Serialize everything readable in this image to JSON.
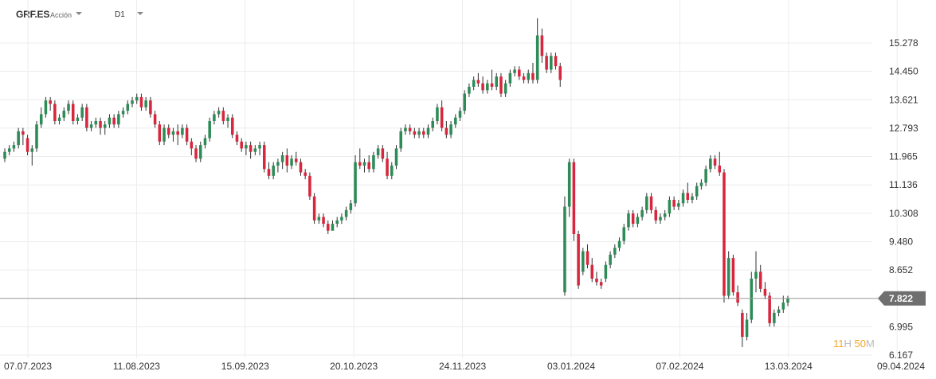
{
  "header": {
    "symbol": "GRF.ES",
    "symbol_type": "Acción",
    "timeframe": "D1"
  },
  "countdown": {
    "hours": "11",
    "hours_unit": "H",
    "minutes": "50",
    "minutes_unit": "M"
  },
  "colors": {
    "up": "#2e8b57",
    "down": "#d7263d",
    "wick": "#333333",
    "grid": "#ececec",
    "price_line": "#999999",
    "price_tag": "#6f6f6f"
  },
  "chart_data": {
    "type": "candlestick",
    "title": "",
    "xlabel": "",
    "ylabel": "",
    "ylim": [
      6.167,
      16.2
    ],
    "grid": true,
    "y_ticks": [
      "15.278",
      "14.450",
      "13.621",
      "12.793",
      "11.965",
      "11.136",
      "10.308",
      "9.480",
      "8.652",
      "6.995",
      "6.167"
    ],
    "x_ticks": [
      "07.07.2023",
      "11.08.2023",
      "15.09.2023",
      "20.10.2023",
      "24.11.2023",
      "03.01.2024",
      "07.02.2024",
      "13.03.2024",
      "09.04.2024"
    ],
    "last_price": 7.822,
    "last_price_label": "7.822",
    "candles": [
      [
        11.9,
        12.2,
        12.1,
        11.8
      ],
      [
        12.1,
        12.3,
        12.2,
        12.0
      ],
      [
        12.2,
        12.4,
        12.3,
        12.1
      ],
      [
        12.3,
        12.8,
        12.7,
        12.2
      ],
      [
        12.7,
        12.8,
        12.6,
        12.3
      ],
      [
        12.5,
        12.6,
        12.1,
        12.0
      ],
      [
        12.1,
        12.3,
        12.2,
        11.7
      ],
      [
        12.2,
        13.0,
        12.9,
        12.1
      ],
      [
        12.9,
        13.4,
        13.2,
        12.8
      ],
      [
        13.2,
        13.7,
        13.6,
        13.1
      ],
      [
        13.6,
        13.7,
        13.5,
        13.3
      ],
      [
        13.5,
        13.6,
        13.0,
        12.9
      ],
      [
        13.0,
        13.2,
        13.1,
        12.9
      ],
      [
        13.1,
        13.4,
        13.3,
        13.0
      ],
      [
        13.3,
        13.6,
        13.5,
        13.2
      ],
      [
        13.5,
        13.6,
        13.0,
        12.9
      ],
      [
        13.0,
        13.2,
        13.1,
        12.9
      ],
      [
        13.1,
        13.5,
        13.4,
        13.0
      ],
      [
        13.4,
        13.5,
        12.8,
        12.7
      ],
      [
        12.8,
        13.0,
        12.9,
        12.7
      ],
      [
        12.9,
        13.1,
        13.0,
        12.8
      ],
      [
        13.0,
        13.1,
        12.8,
        12.6
      ],
      [
        12.8,
        13.0,
        12.9,
        12.6
      ],
      [
        12.9,
        13.2,
        13.1,
        12.8
      ],
      [
        13.1,
        13.2,
        12.9,
        12.8
      ],
      [
        12.9,
        13.3,
        13.2,
        12.8
      ],
      [
        13.2,
        13.4,
        13.3,
        13.1
      ],
      [
        13.3,
        13.6,
        13.5,
        13.2
      ],
      [
        13.5,
        13.7,
        13.6,
        13.4
      ],
      [
        13.6,
        13.8,
        13.7,
        13.5
      ],
      [
        13.7,
        13.8,
        13.4,
        13.3
      ],
      [
        13.4,
        13.7,
        13.6,
        13.3
      ],
      [
        13.6,
        13.7,
        13.2,
        13.1
      ],
      [
        13.2,
        13.3,
        12.9,
        12.8
      ],
      [
        12.9,
        13.0,
        12.4,
        12.3
      ],
      [
        12.4,
        12.9,
        12.8,
        12.3
      ],
      [
        12.8,
        12.9,
        12.6,
        12.5
      ],
      [
        12.6,
        12.8,
        12.7,
        12.4
      ],
      [
        12.7,
        12.9,
        12.6,
        12.3
      ],
      [
        12.6,
        12.9,
        12.8,
        12.5
      ],
      [
        12.8,
        12.9,
        12.4,
        12.3
      ],
      [
        12.4,
        12.5,
        12.2,
        12.0
      ],
      [
        12.2,
        12.3,
        11.9,
        11.8
      ],
      [
        11.9,
        12.4,
        12.3,
        11.8
      ],
      [
        12.3,
        12.6,
        12.5,
        12.2
      ],
      [
        12.5,
        13.1,
        13.0,
        12.4
      ],
      [
        13.0,
        13.3,
        13.2,
        12.9
      ],
      [
        13.2,
        13.4,
        13.3,
        13.1
      ],
      [
        13.3,
        13.4,
        13.0,
        12.9
      ],
      [
        13.0,
        13.2,
        13.1,
        12.8
      ],
      [
        13.1,
        13.2,
        12.6,
        12.5
      ],
      [
        12.6,
        12.7,
        12.4,
        12.3
      ],
      [
        12.4,
        12.5,
        12.2,
        12.1
      ],
      [
        12.2,
        12.4,
        12.3,
        12.0
      ],
      [
        12.3,
        12.4,
        12.1,
        11.9
      ],
      [
        12.1,
        12.3,
        12.2,
        12.0
      ],
      [
        12.2,
        12.4,
        12.3,
        12.0
      ],
      [
        12.3,
        12.4,
        11.6,
        11.5
      ],
      [
        11.6,
        11.8,
        11.4,
        11.3
      ],
      [
        11.4,
        11.8,
        11.7,
        11.3
      ],
      [
        11.7,
        11.9,
        11.8,
        11.5
      ],
      [
        11.8,
        12.1,
        12.0,
        11.6
      ],
      [
        12.0,
        12.2,
        11.7,
        11.5
      ],
      [
        11.7,
        12.0,
        11.9,
        11.6
      ],
      [
        11.9,
        12.1,
        11.8,
        11.7
      ],
      [
        11.8,
        11.9,
        11.5,
        11.4
      ],
      [
        11.5,
        11.6,
        11.4,
        11.3
      ],
      [
        11.4,
        11.5,
        10.8,
        10.7
      ],
      [
        10.8,
        10.9,
        10.1,
        10.0
      ],
      [
        10.1,
        10.3,
        10.2,
        10.0
      ],
      [
        10.2,
        10.3,
        10.0,
        9.9
      ],
      [
        10.0,
        10.1,
        9.8,
        9.7
      ],
      [
        9.8,
        10.1,
        10.0,
        9.8
      ],
      [
        10.0,
        10.2,
        10.1,
        9.9
      ],
      [
        10.1,
        10.3,
        10.2,
        10.0
      ],
      [
        10.2,
        10.5,
        10.4,
        10.1
      ],
      [
        10.4,
        10.7,
        10.6,
        10.3
      ],
      [
        10.6,
        12.0,
        11.8,
        10.5
      ],
      [
        11.8,
        12.2,
        11.7,
        11.6
      ],
      [
        11.7,
        11.9,
        11.8,
        11.5
      ],
      [
        11.8,
        12.0,
        11.6,
        11.5
      ],
      [
        11.6,
        12.1,
        12.0,
        11.5
      ],
      [
        12.0,
        12.3,
        12.2,
        11.9
      ],
      [
        12.2,
        12.3,
        11.9,
        11.8
      ],
      [
        11.9,
        12.1,
        11.4,
        11.3
      ],
      [
        11.4,
        11.8,
        11.7,
        11.3
      ],
      [
        11.7,
        12.3,
        12.2,
        11.6
      ],
      [
        12.2,
        12.8,
        12.7,
        12.1
      ],
      [
        12.7,
        12.9,
        12.8,
        12.6
      ],
      [
        12.8,
        12.9,
        12.7,
        12.6
      ],
      [
        12.7,
        12.8,
        12.6,
        12.5
      ],
      [
        12.6,
        12.8,
        12.7,
        12.5
      ],
      [
        12.7,
        12.8,
        12.6,
        12.5
      ],
      [
        12.6,
        12.9,
        12.8,
        12.5
      ],
      [
        12.8,
        13.1,
        13.0,
        12.7
      ],
      [
        13.0,
        13.5,
        13.4,
        12.9
      ],
      [
        13.4,
        13.6,
        12.8,
        12.7
      ],
      [
        12.8,
        13.0,
        12.6,
        12.5
      ],
      [
        12.6,
        13.0,
        12.9,
        12.5
      ],
      [
        12.9,
        13.2,
        13.1,
        12.8
      ],
      [
        13.1,
        13.4,
        13.3,
        13.0
      ],
      [
        13.3,
        13.9,
        13.8,
        13.2
      ],
      [
        13.8,
        14.1,
        14.0,
        13.7
      ],
      [
        14.0,
        14.3,
        14.2,
        13.9
      ],
      [
        14.2,
        14.4,
        14.1,
        14.0
      ],
      [
        14.1,
        14.3,
        13.9,
        13.8
      ],
      [
        13.9,
        14.2,
        14.1,
        13.8
      ],
      [
        14.1,
        14.5,
        14.0,
        13.9
      ],
      [
        14.0,
        14.4,
        14.3,
        13.9
      ],
      [
        14.3,
        14.4,
        13.8,
        13.7
      ],
      [
        13.8,
        14.2,
        14.1,
        13.7
      ],
      [
        14.1,
        14.5,
        14.4,
        14.0
      ],
      [
        14.4,
        14.6,
        14.5,
        14.3
      ],
      [
        14.5,
        14.6,
        14.3,
        14.2
      ],
      [
        14.3,
        14.4,
        14.2,
        14.1
      ],
      [
        14.2,
        14.5,
        14.4,
        14.1
      ],
      [
        14.4,
        14.7,
        14.2,
        14.1
      ],
      [
        14.2,
        16.0,
        15.5,
        14.1
      ],
      [
        15.5,
        15.7,
        14.9,
        14.7
      ],
      [
        14.9,
        15.0,
        14.5,
        14.4
      ],
      [
        14.5,
        15.0,
        14.9,
        14.4
      ],
      [
        14.9,
        15.0,
        14.6,
        14.5
      ],
      [
        14.6,
        14.7,
        14.2,
        14.0
      ],
      [
        8.0,
        10.8,
        10.5,
        7.9
      ],
      [
        10.5,
        11.9,
        11.8,
        10.2
      ],
      [
        11.8,
        11.9,
        9.7,
        9.5
      ],
      [
        9.7,
        9.8,
        8.2,
        8.1
      ],
      [
        8.6,
        9.3,
        9.2,
        8.5
      ],
      [
        9.2,
        9.4,
        8.8,
        8.7
      ],
      [
        8.8,
        9.0,
        8.4,
        8.3
      ],
      [
        8.4,
        8.6,
        8.3,
        8.2
      ],
      [
        8.3,
        8.4,
        8.2,
        8.1
      ],
      [
        8.4,
        8.9,
        8.8,
        8.3
      ],
      [
        8.8,
        9.2,
        9.1,
        8.7
      ],
      [
        9.1,
        9.4,
        9.3,
        9.0
      ],
      [
        9.3,
        9.6,
        9.5,
        9.2
      ],
      [
        9.5,
        10.0,
        9.9,
        9.4
      ],
      [
        9.9,
        10.4,
        10.3,
        9.8
      ],
      [
        10.3,
        10.4,
        10.0,
        9.9
      ],
      [
        10.0,
        10.3,
        10.2,
        9.9
      ],
      [
        10.2,
        10.5,
        10.4,
        10.1
      ],
      [
        10.4,
        10.9,
        10.8,
        10.3
      ],
      [
        10.8,
        10.9,
        10.4,
        10.3
      ],
      [
        10.4,
        10.5,
        10.1,
        10.0
      ],
      [
        10.1,
        10.3,
        10.2,
        10.0
      ],
      [
        10.2,
        10.4,
        10.3,
        10.1
      ],
      [
        10.3,
        10.8,
        10.7,
        10.2
      ],
      [
        10.7,
        10.8,
        10.5,
        10.4
      ],
      [
        10.5,
        10.7,
        10.6,
        10.4
      ],
      [
        10.6,
        11.0,
        10.9,
        10.5
      ],
      [
        10.9,
        11.2,
        10.7,
        10.6
      ],
      [
        10.7,
        10.9,
        10.8,
        10.6
      ],
      [
        10.8,
        11.2,
        11.1,
        10.7
      ],
      [
        11.1,
        11.3,
        11.2,
        11.0
      ],
      [
        11.2,
        11.7,
        11.6,
        11.1
      ],
      [
        11.6,
        12.0,
        11.9,
        11.5
      ],
      [
        11.9,
        12.0,
        11.7,
        11.6
      ],
      [
        11.7,
        12.1,
        11.5,
        11.4
      ],
      [
        11.5,
        11.6,
        7.9,
        7.7
      ],
      [
        7.9,
        9.2,
        9.0,
        7.8
      ],
      [
        9.0,
        9.1,
        8.0,
        7.9
      ],
      [
        8.0,
        8.2,
        7.7,
        7.6
      ],
      [
        7.4,
        7.5,
        6.7,
        6.4
      ],
      [
        6.7,
        7.4,
        7.2,
        6.6
      ],
      [
        7.2,
        8.6,
        8.4,
        7.1
      ],
      [
        8.4,
        9.2,
        8.6,
        8.0
      ],
      [
        8.6,
        8.8,
        8.1,
        8.0
      ],
      [
        8.1,
        8.3,
        7.9,
        7.8
      ],
      [
        7.9,
        8.0,
        7.1,
        7.0
      ],
      [
        7.1,
        7.5,
        7.4,
        7.0
      ],
      [
        7.4,
        7.6,
        7.5,
        7.3
      ],
      [
        7.5,
        7.9,
        7.7,
        7.4
      ],
      [
        7.7,
        7.9,
        7.822,
        7.6
      ]
    ]
  }
}
